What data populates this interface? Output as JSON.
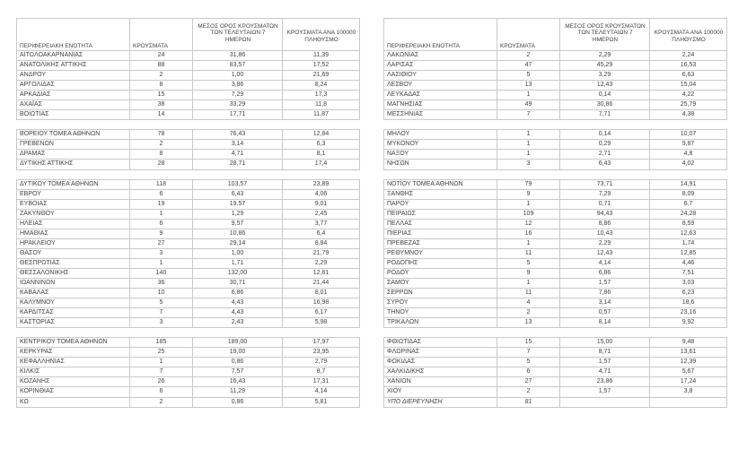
{
  "page": {
    "background_color": "#ffffff",
    "text_color": "#3f3f3f",
    "border_color": "#c9c9c9"
  },
  "headers": {
    "region": "ΠΕΡΙΦΕΡΕΙΑΚΗ ΕΝΟΤΗΤΑ",
    "cases": "ΚΡΟΥΣΜΑΤΑ",
    "avg7": "ΜΕΣΟΣ ΟΡΟΣ ΚΡΟΥΣΜΑΤΩΝ\nΤΩΝ ΤΕΛΕΥΤΑΙΩΝ 7\nΗΜΕΡΩΝ",
    "per100k": "ΚΡΟΥΣΜΑΤΑ ΑΝΑ 100000\nΠΛΗΘΥΣΜΟ"
  },
  "italic_rows": [
    "ΥΠΟ ΔΙΕΡΕΥΝΗΣΗ"
  ],
  "left_table": {
    "groups": [
      [
        [
          "ΑΙΤΩΛΟΑΚΑΡΝΑΝΙΑΣ",
          "24",
          "31,86",
          "11,39"
        ],
        [
          "ΑΝΑΤΟΛΙΚΗΣ ΑΤΤΙΚΗΣ",
          "88",
          "83,57",
          "17,52"
        ],
        [
          "ΑΝΔΡΟΥ",
          "2",
          "1,00",
          "21,69"
        ],
        [
          "ΑΡΓΟΛΙΔΑΣ",
          "8",
          "3,86",
          "8,24"
        ],
        [
          "ΑΡΚΑΔΙΑΣ",
          "15",
          "7,29",
          "17,3"
        ],
        [
          "ΑΧΑΪΑΣ",
          "38",
          "33,29",
          "11,8"
        ],
        [
          "ΒΟΙΩΤΙΑΣ",
          "14",
          "17,71",
          "11,87"
        ]
      ],
      [
        [
          "ΒΟΡΕΙΟΥ ΤΟΜΕΑ ΑΘΗΝΩΝ",
          "78",
          "76,43",
          "12,84"
        ],
        [
          "ΓΡΕΒΕΝΩΝ",
          "2",
          "3,14",
          "6,3"
        ],
        [
          "ΔΡΑΜΑΣ",
          "8",
          "4,71",
          "8,1"
        ],
        [
          "ΔΥΤΙΚΗΣ ΑΤΤΙΚΗΣ",
          "28",
          "28,71",
          "17,4"
        ]
      ],
      [
        [
          "ΔΥΤΙΚΟΥ ΤΟΜΕΑ ΑΘΗΝΩΝ",
          "118",
          "103,57",
          "23,89"
        ],
        [
          "ΕΒΡΟΥ",
          "6",
          "6,43",
          "4,06"
        ],
        [
          "ΕΥΒΟΙΑΣ",
          "19",
          "19,57",
          "9,01"
        ],
        [
          "ΖΑΚΥΝΘΟΥ",
          "1",
          "1,29",
          "2,45"
        ],
        [
          "ΗΛΕΙΑΣ",
          "6",
          "9,57",
          "3,77"
        ],
        [
          "ΗΜΑΘΙΑΣ",
          "9",
          "10,86",
          "6,4"
        ],
        [
          "ΗΡΑΚΛΕΙΟΥ",
          "27",
          "29,14",
          "8,84"
        ],
        [
          "ΘΑΣΟΥ",
          "3",
          "1,00",
          "21,79"
        ],
        [
          "ΘΕΣΠΡΩΤΙΑΣ",
          "1",
          "1,71",
          "2,29"
        ],
        [
          "ΘΕΣΣΑΛΟΝΙΚΗΣ",
          "140",
          "132,00",
          "12,61"
        ],
        [
          "ΙΩΑΝΝΙΝΩΝ",
          "36",
          "30,71",
          "21,44"
        ],
        [
          "ΚΑΒΑΛΑΣ",
          "10",
          "6,86",
          "8,01"
        ],
        [
          "ΚΑΛΥΜΝΟΥ",
          "5",
          "4,43",
          "16,98"
        ],
        [
          "ΚΑΡΔΙΤΣΑΣ",
          "7",
          "4,43",
          "6,17"
        ],
        [
          "ΚΑΣΤΟΡΙΑΣ",
          "3",
          "2,43",
          "5,98"
        ]
      ],
      [
        [
          "ΚΕΝΤΡΙΚΟΥ ΤΟΜΕΑ ΑΘΗΝΩΝ",
          "185",
          "189,00",
          "17,97"
        ],
        [
          "ΚΕΡΚΥΡΑΣ",
          "25",
          "19,00",
          "23,95"
        ],
        [
          "ΚΕΦΑΛΛΗΝΙΑΣ",
          "1",
          "0,86",
          "2,79"
        ],
        [
          "ΚΙΛΚΙΣ",
          "7",
          "7,57",
          "8,7"
        ],
        [
          "ΚΟΖΑΝΗΣ",
          "26",
          "16,43",
          "17,31"
        ],
        [
          "ΚΟΡΙΝΘΙΑΣ",
          "6",
          "11,29",
          "4,14"
        ],
        [
          "ΚΩ",
          "2",
          "0,86",
          "5,81"
        ]
      ]
    ]
  },
  "right_table": {
    "groups": [
      [
        [
          "ΛΑΚΩΝΙΑΣ",
          "2",
          "2,29",
          "2,24"
        ],
        [
          "ΛΑΡΙΣΑΣ",
          "47",
          "45,29",
          "16,53"
        ],
        [
          "ΛΑΣΙΘΙΟΥ",
          "5",
          "3,29",
          "6,63"
        ],
        [
          "ΛΕΣΒΟΥ",
          "13",
          "12,43",
          "15,04"
        ],
        [
          "ΛΕΥΚΑΔΑΣ",
          "1",
          "0,14",
          "4,22"
        ],
        [
          "ΜΑΓΝΗΣΙΑΣ",
          "49",
          "30,86",
          "25,79"
        ],
        [
          "ΜΕΣΣΗΝΙΑΣ",
          "7",
          "7,71",
          "4,38"
        ]
      ],
      [
        [
          "ΜΗΛΟΥ",
          "1",
          "0,14",
          "10,07"
        ],
        [
          "ΜΥΚΟΝΟΥ",
          "1",
          "0,29",
          "9,87"
        ],
        [
          "ΝΑΞΟΥ",
          "1",
          "2,71",
          "4,8"
        ],
        [
          "ΝΗΣΩΝ",
          "3",
          "6,43",
          "4,02"
        ]
      ],
      [
        [
          "ΝΟΤΙΟΥ ΤΟΜΕΑ ΑΘΗΝΩΝ",
          "79",
          "73,71",
          "14,91"
        ],
        [
          "ΞΑΝΘΗΣ",
          "9",
          "7,29",
          "8,09"
        ],
        [
          "ΠΑΡΟΥ",
          "1",
          "0,71",
          "6,7"
        ],
        [
          "ΠΕΙΡΑΙΩΣ",
          "109",
          "94,43",
          "24,28"
        ],
        [
          "ΠΕΛΛΑΣ",
          "12",
          "8,86",
          "8,59"
        ],
        [
          "ΠΙΕΡΙΑΣ",
          "16",
          "10,43",
          "12,63"
        ],
        [
          "ΠΡΕΒΕΖΑΣ",
          "1",
          "2,29",
          "1,74"
        ],
        [
          "ΡΕΘΥΜΝΟΥ",
          "11",
          "12,43",
          "12,85"
        ],
        [
          "ΡΟΔΟΠΗΣ",
          "5",
          "4,14",
          "4,46"
        ],
        [
          "ΡΟΔΟΥ",
          "9",
          "6,86",
          "7,51"
        ],
        [
          "ΣΑΜΟΥ",
          "1",
          "1,57",
          "3,03"
        ],
        [
          "ΣΕΡΡΩΝ",
          "11",
          "7,86",
          "6,23"
        ],
        [
          "ΣΥΡΟΥ",
          "4",
          "3,14",
          "18,6"
        ],
        [
          "ΤΗΝΟΥ",
          "2",
          "0,57",
          "23,16"
        ],
        [
          "ΤΡΙΚΑΛΩΝ",
          "13",
          "8,14",
          "9,92"
        ]
      ],
      [
        [
          "ΦΘΙΩΤΙΔΑΣ",
          "15",
          "15,00",
          "9,48"
        ],
        [
          "ΦΛΩΡΙΝΑΣ",
          "7",
          "8,71",
          "13,61"
        ],
        [
          "ΦΩΚΙΔΑΣ",
          "5",
          "1,57",
          "12,39"
        ],
        [
          "ΧΑΛΚΙΔΙΚΗΣ",
          "6",
          "4,71",
          "5,67"
        ],
        [
          "ΧΑΝΙΩΝ",
          "27",
          "23,86",
          "17,24"
        ],
        [
          "ΧΙΟΥ",
          "2",
          "1,57",
          "3,8"
        ],
        [
          "ΥΠΟ ΔΙΕΡΕΥΝΗΣΗ",
          "81",
          "",
          ""
        ]
      ]
    ]
  }
}
